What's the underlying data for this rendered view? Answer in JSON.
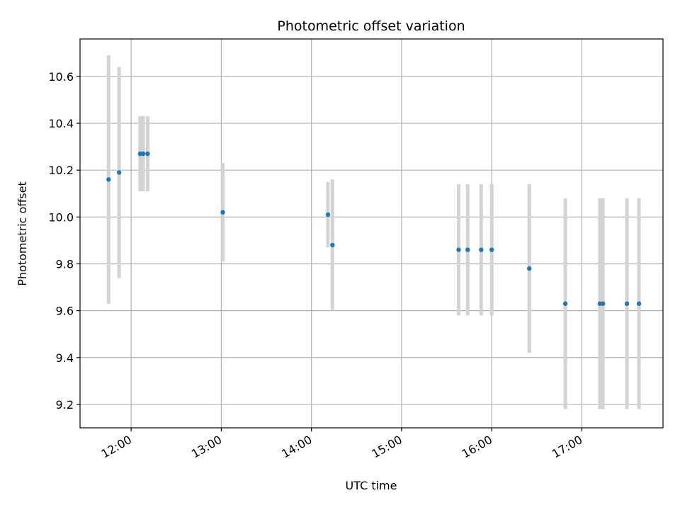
{
  "chart_data": {
    "type": "scatter",
    "title": "Photometric offset variation",
    "xlabel": "UTC time",
    "ylabel": "Photometric offset",
    "x_ticks": [
      "12:00",
      "13:00",
      "14:00",
      "15:00",
      "16:00",
      "17:00"
    ],
    "y_ticks": [
      "9.2",
      "9.4",
      "9.6",
      "9.8",
      "10.0",
      "10.2",
      "10.4",
      "10.6"
    ],
    "xlim": [
      "11:26",
      "17:54"
    ],
    "ylim": [
      9.1,
      10.76
    ],
    "grid": true,
    "series": [
      {
        "marker_color": "#1f77b4",
        "errorbar_color": "#d3d3d3",
        "points": [
          {
            "x": "11:45",
            "y": 10.16,
            "yerr": 0.53
          },
          {
            "x": "11:52",
            "y": 10.19,
            "yerr": 0.45
          },
          {
            "x": "12:06",
            "y": 10.27,
            "yerr": 0.16
          },
          {
            "x": "12:08",
            "y": 10.27,
            "yerr": 0.16
          },
          {
            "x": "12:11",
            "y": 10.27,
            "yerr": 0.16
          },
          {
            "x": "13:01",
            "y": 10.02,
            "yerr": 0.21
          },
          {
            "x": "14:11",
            "y": 10.01,
            "yerr": 0.14
          },
          {
            "x": "14:14",
            "y": 9.88,
            "yerr": 0.28
          },
          {
            "x": "15:38",
            "y": 9.86,
            "yerr": 0.28
          },
          {
            "x": "15:44",
            "y": 9.86,
            "yerr": 0.28
          },
          {
            "x": "15:53",
            "y": 9.86,
            "yerr": 0.28
          },
          {
            "x": "16:00",
            "y": 9.86,
            "yerr": 0.28
          },
          {
            "x": "16:25",
            "y": 9.78,
            "yerr": 0.36
          },
          {
            "x": "16:49",
            "y": 9.63,
            "yerr": 0.45
          },
          {
            "x": "17:12",
            "y": 9.63,
            "yerr": 0.45
          },
          {
            "x": "17:14",
            "y": 9.63,
            "yerr": 0.45
          },
          {
            "x": "17:30",
            "y": 9.63,
            "yerr": 0.45
          },
          {
            "x": "17:38",
            "y": 9.63,
            "yerr": 0.45
          }
        ]
      }
    ]
  }
}
